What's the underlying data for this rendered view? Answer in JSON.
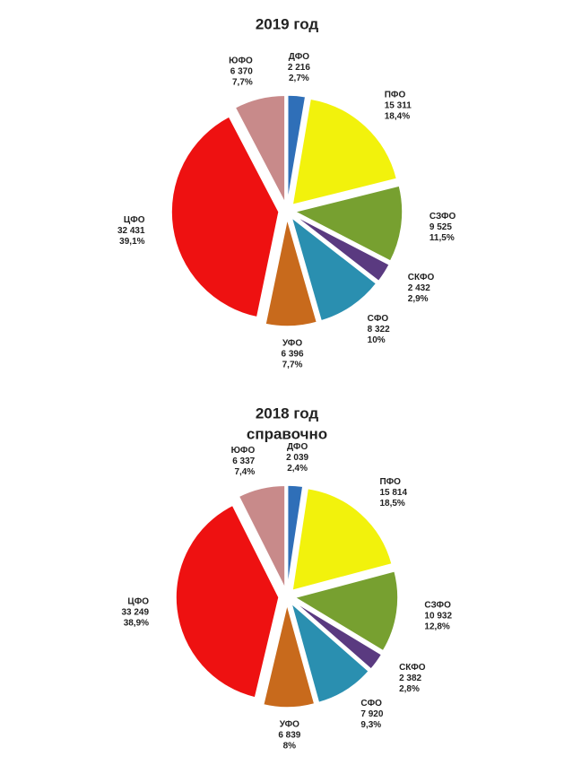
{
  "chart_data": [
    {
      "type": "pie",
      "title": "2019 год",
      "categories": [
        "ДФО",
        "ПФО",
        "СЗФО",
        "СКФО",
        "СФО",
        "УФО",
        "ЦФО",
        "ЮФО"
      ],
      "values": [
        2216,
        15311,
        9525,
        2432,
        8322,
        6396,
        32431,
        6370
      ],
      "value_labels": [
        "2 216",
        "15 311",
        "9 525",
        "2 432",
        "8 322",
        "6 396",
        "32 431",
        "6 370"
      ],
      "percents": [
        2.7,
        18.4,
        11.5,
        2.9,
        10,
        7.7,
        39.1,
        7.7
      ],
      "percent_labels": [
        "2,7%",
        "18,4%",
        "11,5%",
        "2,9%",
        "10%",
        "7,7%",
        "39,1%",
        "7,7%"
      ],
      "colors": [
        "#2f6fb8",
        "#f2f20c",
        "#77a030",
        "#5a3a80",
        "#2a8fb0",
        "#c86a1c",
        "#ee1111",
        "#c88a8a"
      ]
    },
    {
      "type": "pie",
      "title": "2018 год",
      "subtitle": "справочно",
      "categories": [
        "ДФО",
        "ПФО",
        "СЗФО",
        "СКФО",
        "СФО",
        "УФО",
        "ЦФО",
        "ЮФО"
      ],
      "values": [
        2039,
        15814,
        10932,
        2382,
        7920,
        6839,
        33249,
        6337
      ],
      "value_labels": [
        "2 039",
        "15 814",
        "10 932",
        "2 382",
        "7 920",
        "6 839",
        "33 249",
        "6 337"
      ],
      "percents": [
        2.4,
        18.5,
        12.8,
        2.8,
        9.3,
        8,
        38.9,
        7.4
      ],
      "percent_labels": [
        "2,4%",
        "18,5%",
        "12,8%",
        "2,8%",
        "9,3%",
        "8%",
        "38,9%",
        "7,4%"
      ],
      "colors": [
        "#2f6fb8",
        "#f2f20c",
        "#77a030",
        "#5a3a80",
        "#2a8fb0",
        "#c86a1c",
        "#ee1111",
        "#c88a8a"
      ]
    }
  ]
}
